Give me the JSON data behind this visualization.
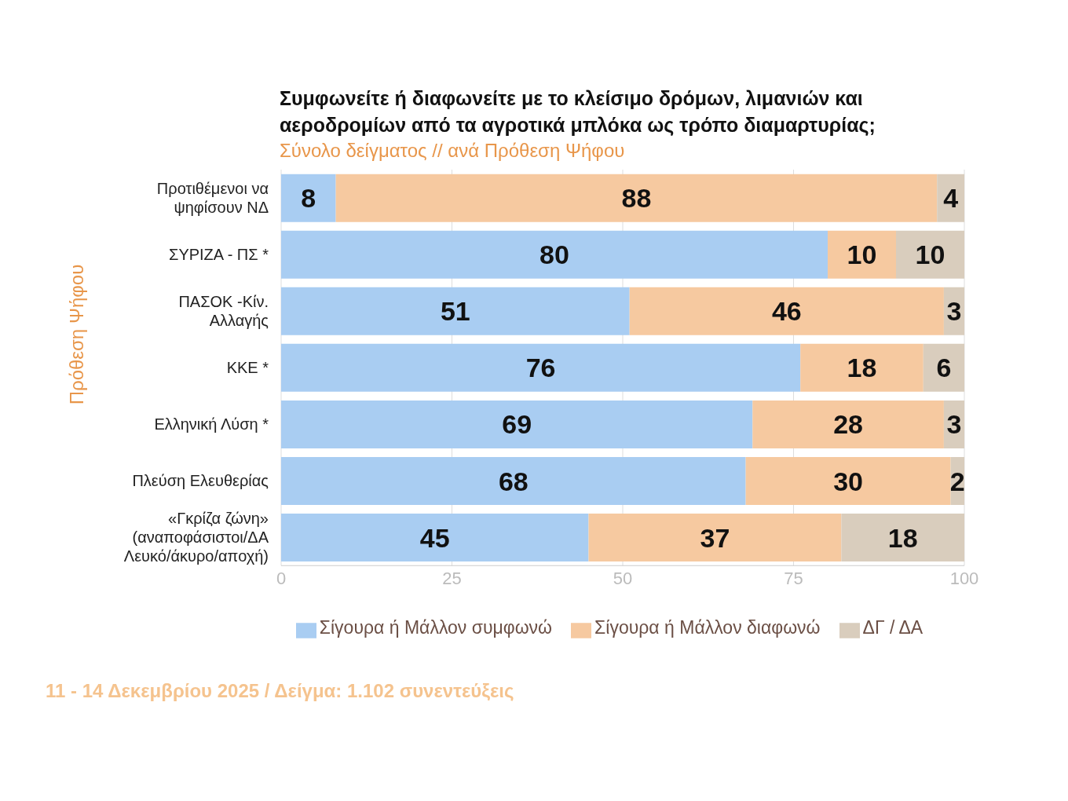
{
  "chart_data": {
    "type": "bar",
    "orientation": "horizontal",
    "stacked": true,
    "title": "Συμφωνείτε ή διαφωνείτε με το κλείσιμο δρόμων, λιμανιών και αεροδρομίων από τα αγροτικά μπλόκα ως τρόπο διαμαρτυρίας;",
    "subtitle": "Σύνολο δείγματος // ανά Πρόθεση Ψήφου",
    "ylabel": "Πρόθεση Ψήφου",
    "categories": [
      "Προτιθέμενοι να ψηφίσουν ΝΔ",
      "ΣΥΡΙΖΑ - ΠΣ *",
      "ΠΑΣΟΚ -Κίν. Αλλαγής",
      "ΚΚΕ *",
      "Ελληνική Λύση *",
      "Πλεύση Ελευθερίας",
      "«Γκρίζα ζώνη» (αναποφάσιστοι/ΔΑ Λευκό/άκυρο/αποχή)"
    ],
    "series": [
      {
        "name": "Σίγουρα ή Μάλλον συμφωνώ",
        "color": "#a9cdf2",
        "values": [
          8,
          80,
          51,
          76,
          69,
          68,
          45
        ]
      },
      {
        "name": "Σίγουρα ή Μάλλον διαφωνώ",
        "color": "#f6c9a0",
        "values": [
          88,
          10,
          46,
          18,
          28,
          30,
          37
        ]
      },
      {
        "name": "ΔΓ / ΔΑ",
        "color": "#d9cdbd",
        "values": [
          4,
          10,
          3,
          6,
          3,
          2,
          18
        ]
      }
    ],
    "xlim": [
      0,
      100
    ],
    "xticks": [
      0,
      25,
      50,
      75,
      100
    ],
    "grid": "x",
    "legend": "bottom",
    "data_labels": true,
    "annotations": [
      "11 - 14 Δεκεμβρίου 2025  /  Δείγμα:  1.102 συνεντεύξεις"
    ]
  }
}
